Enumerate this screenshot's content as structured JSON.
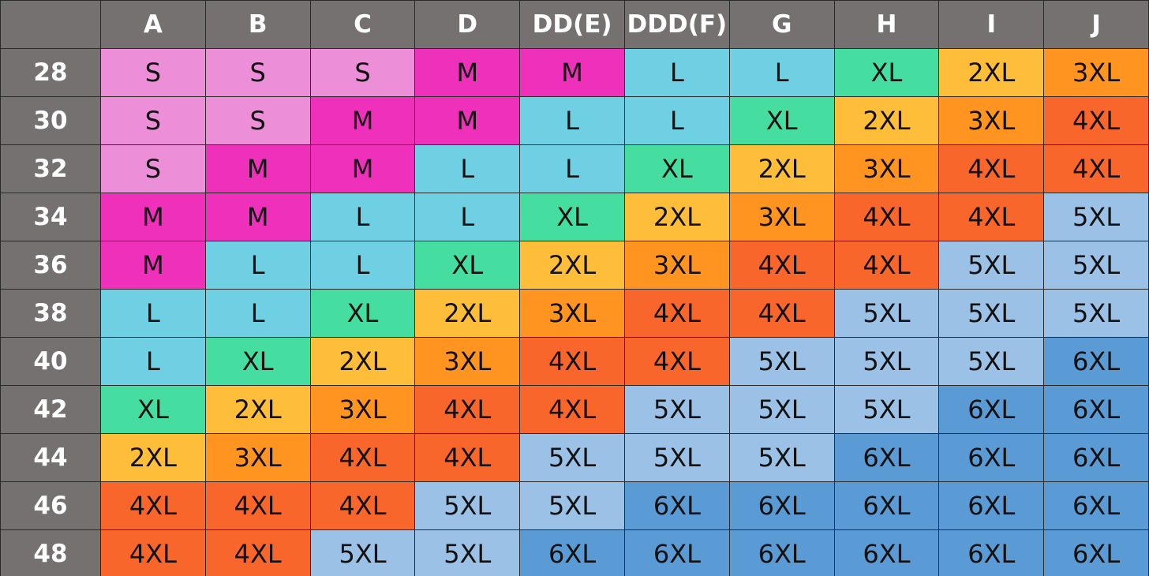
{
  "table": {
    "columns": [
      "A",
      "B",
      "C",
      "D",
      "DD(E)",
      "DDD(F)",
      "G",
      "H",
      "I",
      "J"
    ],
    "rows": [
      {
        "label": "28",
        "cells": [
          "S",
          "S",
          "S",
          "M",
          "M",
          "L",
          "L",
          "XL",
          "2XL",
          "3XL"
        ]
      },
      {
        "label": "30",
        "cells": [
          "S",
          "S",
          "M",
          "M",
          "L",
          "L",
          "XL",
          "2XL",
          "3XL",
          "4XL"
        ]
      },
      {
        "label": "32",
        "cells": [
          "S",
          "M",
          "M",
          "L",
          "L",
          "XL",
          "2XL",
          "3XL",
          "4XL",
          "4XL"
        ]
      },
      {
        "label": "34",
        "cells": [
          "M",
          "M",
          "L",
          "L",
          "XL",
          "2XL",
          "3XL",
          "4XL",
          "4XL",
          "5XL"
        ]
      },
      {
        "label": "36",
        "cells": [
          "M",
          "L",
          "L",
          "XL",
          "2XL",
          "3XL",
          "4XL",
          "4XL",
          "5XL",
          "5XL"
        ]
      },
      {
        "label": "38",
        "cells": [
          "L",
          "L",
          "XL",
          "2XL",
          "3XL",
          "4XL",
          "4XL",
          "5XL",
          "5XL",
          "5XL"
        ]
      },
      {
        "label": "40",
        "cells": [
          "L",
          "XL",
          "2XL",
          "3XL",
          "4XL",
          "4XL",
          "5XL",
          "5XL",
          "5XL",
          "6XL"
        ]
      },
      {
        "label": "42",
        "cells": [
          "XL",
          "2XL",
          "3XL",
          "4XL",
          "4XL",
          "5XL",
          "5XL",
          "5XL",
          "6XL",
          "6XL"
        ]
      },
      {
        "label": "44",
        "cells": [
          "2XL",
          "3XL",
          "4XL",
          "4XL",
          "5XL",
          "5XL",
          "5XL",
          "6XL",
          "6XL",
          "6XL"
        ]
      },
      {
        "label": "46",
        "cells": [
          "4XL",
          "4XL",
          "4XL",
          "5XL",
          "5XL",
          "6XL",
          "6XL",
          "6XL",
          "6XL",
          "6XL"
        ]
      },
      {
        "label": "48",
        "cells": [
          "4XL",
          "4XL",
          "5XL",
          "5XL",
          "6XL",
          "6XL",
          "6XL",
          "6XL",
          "6XL",
          "6XL"
        ]
      }
    ],
    "colors": {
      "S": "#ec8fd8",
      "M": "#ee30bb",
      "L": "#70d0e3",
      "XL": "#46dea0",
      "2XL": "#ffbe3a",
      "3XL": "#ff9520",
      "4XL": "#f9662c",
      "5XL": "#9bc2e6",
      "6XL": "#5b9bd5"
    }
  }
}
